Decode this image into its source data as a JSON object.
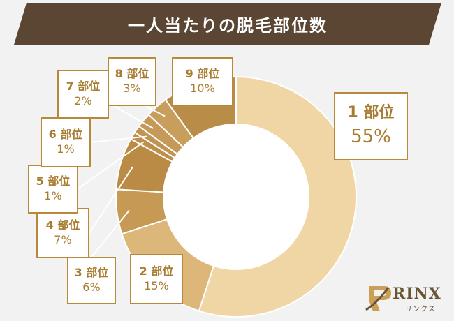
{
  "header": {
    "title": "一人当たりの脱毛部位数"
  },
  "chart_data": {
    "type": "pie",
    "title": "一人当たりの脱毛部位数",
    "categories": [
      "1 部位",
      "2 部位",
      "3 部位",
      "4 部位",
      "5 部位",
      "6 部位",
      "7 部位",
      "8 部位",
      "9 部位"
    ],
    "values": [
      55,
      15,
      6,
      7,
      1,
      1,
      2,
      3,
      10
    ],
    "value_labels": [
      "55%",
      "15%",
      "6%",
      "7%",
      "1%",
      "1%",
      "2%",
      "3%",
      "10%"
    ],
    "colors": [
      "#f0d6a4",
      "#ddb77a",
      "#c69a55",
      "#b98b45",
      "#bc8f4a",
      "#c09452",
      "#c59a58",
      "#c89e5c",
      "#b98c47"
    ],
    "donut": true,
    "legend": "callout-labels"
  },
  "logo": {
    "name": "RINX",
    "sub": "リンクス",
    "icon": "rinx-logo-icon"
  }
}
